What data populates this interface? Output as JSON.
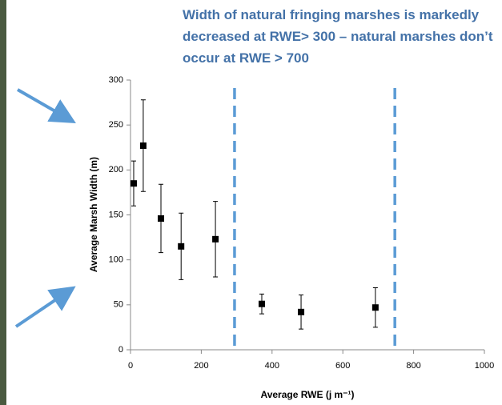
{
  "chart_data": {
    "type": "scatter",
    "title": [
      "Width of natural fringing marshes is markedly",
      "decreased at RWE> 300 – natural marshes don’t",
      "occur at RWE > 700"
    ],
    "x_label": "Average RWE (j m⁻¹)",
    "y_label": "Average Marsh Width (m)",
    "x": [
      9,
      36,
      86,
      143,
      240,
      371,
      482,
      692
    ],
    "values": [
      185,
      227,
      146,
      115,
      123,
      51,
      42,
      47
    ],
    "errors": [
      25,
      51,
      38,
      37,
      42,
      11,
      19,
      22
    ],
    "color": "#000000",
    "vlines": [
      294,
      747
    ],
    "vline_color": "#5b9bd5",
    "xlim": [
      0,
      1000
    ],
    "xticks": [
      0,
      200,
      400,
      600,
      800,
      1000
    ],
    "ylim": [
      0,
      300
    ],
    "yticks": [
      0,
      50,
      100,
      150,
      200,
      250,
      300
    ]
  }
}
